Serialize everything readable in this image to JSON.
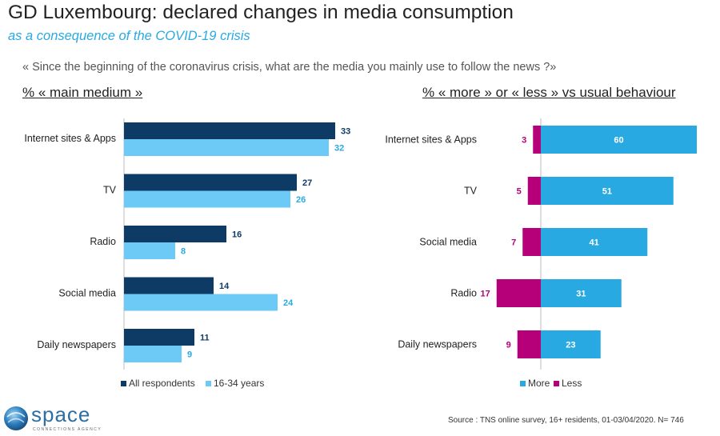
{
  "header": {
    "title": "GD Luxembourg: declared changes in media consumption",
    "subtitle": "as a consequence of the COVID-19 crisis",
    "question": "« Since the beginning of the coronavirus crisis, what are the media you mainly use to follow the news ?»"
  },
  "footer": {
    "source": "Source : TNS online survey, 16+ residents, 01-03/04/2020. N= 746",
    "logo_word": "space",
    "logo_sub": "CONNECTIONS AGENCY"
  },
  "colors": {
    "all_respondents": "#0e3b66",
    "age_16_34": "#6dcaf7",
    "more": "#29a9e1",
    "less": "#b5007a"
  },
  "chart_data": [
    {
      "type": "bar",
      "orientation": "horizontal",
      "title": "% « main medium »",
      "categories": [
        "Internet sites & Apps",
        "TV",
        "Radio",
        "Social media",
        "Daily newspapers"
      ],
      "series": [
        {
          "name": "All respondents",
          "values": [
            33,
            27,
            16,
            14,
            11
          ]
        },
        {
          "name": "16-34 years",
          "values": [
            32,
            26,
            8,
            24,
            9
          ]
        }
      ],
      "legend": "bottom"
    },
    {
      "type": "bar",
      "orientation": "horizontal",
      "diverging": true,
      "title": "% « more » or « less » vs usual behaviour",
      "categories": [
        "Internet sites & Apps",
        "TV",
        "Social media",
        "Radio",
        "Daily newspapers"
      ],
      "series": [
        {
          "name": "More",
          "values": [
            60,
            51,
            41,
            31,
            23
          ]
        },
        {
          "name": "Less",
          "values": [
            3,
            5,
            7,
            17,
            9
          ]
        }
      ],
      "legend": "bottom"
    }
  ]
}
